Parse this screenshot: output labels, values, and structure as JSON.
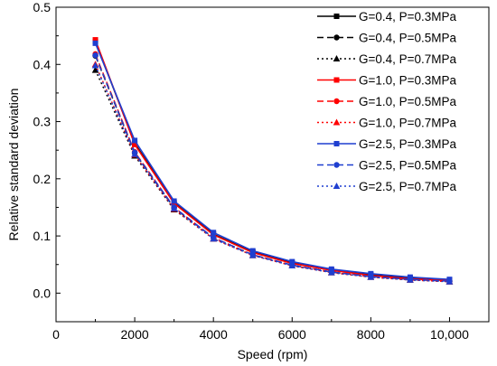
{
  "chart_data": {
    "type": "line",
    "xlabel": "Speed (rpm)",
    "ylabel": "Relative standard deviation",
    "xlim": [
      0,
      11000
    ],
    "ylim": [
      -0.05,
      0.5
    ],
    "xticks": [
      0,
      2000,
      4000,
      6000,
      8000,
      10000
    ],
    "xtick_labels": [
      "0",
      "2000",
      "4000",
      "6000",
      "8000",
      "10,000"
    ],
    "yticks": [
      0.0,
      0.1,
      0.2,
      0.3,
      0.4,
      0.5
    ],
    "ytick_labels": [
      "0.0",
      "0.1",
      "0.2",
      "0.3",
      "0.4",
      "0.5"
    ],
    "grid": false,
    "legend_position": "top-right",
    "x": [
      1000,
      2000,
      3000,
      4000,
      5000,
      6000,
      7000,
      8000,
      9000,
      10000
    ],
    "series": [
      {
        "name": "G=0.4, P=0.3MPa",
        "color": "#000000",
        "dash": "solid",
        "marker": "square",
        "values": [
          0.44,
          0.262,
          0.158,
          0.103,
          0.072,
          0.053,
          0.04,
          0.032,
          0.026,
          0.023
        ]
      },
      {
        "name": "G=0.4, P=0.5MPa",
        "color": "#000000",
        "dash": "dashed",
        "marker": "circle",
        "values": [
          0.415,
          0.245,
          0.149,
          0.097,
          0.067,
          0.049,
          0.037,
          0.029,
          0.024,
          0.021
        ]
      },
      {
        "name": "G=0.4, P=0.7MPa",
        "color": "#000000",
        "dash": "dotted",
        "marker": "triangle",
        "values": [
          0.39,
          0.24,
          0.146,
          0.095,
          0.066,
          0.048,
          0.036,
          0.028,
          0.023,
          0.02
        ]
      },
      {
        "name": "G=1.0, P=0.3MPa",
        "color": "#ff0000",
        "dash": "solid",
        "marker": "square",
        "values": [
          0.443,
          0.26,
          0.157,
          0.102,
          0.071,
          0.052,
          0.04,
          0.031,
          0.025,
          0.022
        ]
      },
      {
        "name": "G=1.0, P=0.5MPa",
        "color": "#ff0000",
        "dash": "dashed",
        "marker": "circle",
        "values": [
          0.418,
          0.247,
          0.15,
          0.097,
          0.067,
          0.049,
          0.037,
          0.029,
          0.024,
          0.021
        ]
      },
      {
        "name": "G=1.0, P=0.7MPa",
        "color": "#ff0000",
        "dash": "dotted",
        "marker": "triangle",
        "values": [
          0.4,
          0.242,
          0.147,
          0.095,
          0.066,
          0.048,
          0.036,
          0.028,
          0.023,
          0.02
        ]
      },
      {
        "name": "G=2.5, P=0.3MPa",
        "color": "#1f3fd0",
        "dash": "solid",
        "marker": "square",
        "values": [
          0.437,
          0.267,
          0.161,
          0.106,
          0.074,
          0.055,
          0.042,
          0.034,
          0.028,
          0.024
        ]
      },
      {
        "name": "G=2.5, P=0.5MPa",
        "color": "#1f3fd0",
        "dash": "dashed",
        "marker": "circle",
        "values": [
          0.416,
          0.246,
          0.15,
          0.097,
          0.067,
          0.049,
          0.037,
          0.029,
          0.024,
          0.021
        ]
      },
      {
        "name": "G=2.5, P=0.7MPa",
        "color": "#1f3fd0",
        "dash": "dotted",
        "marker": "triangle",
        "values": [
          0.398,
          0.243,
          0.148,
          0.095,
          0.066,
          0.048,
          0.036,
          0.028,
          0.023,
          0.02
        ]
      }
    ]
  }
}
